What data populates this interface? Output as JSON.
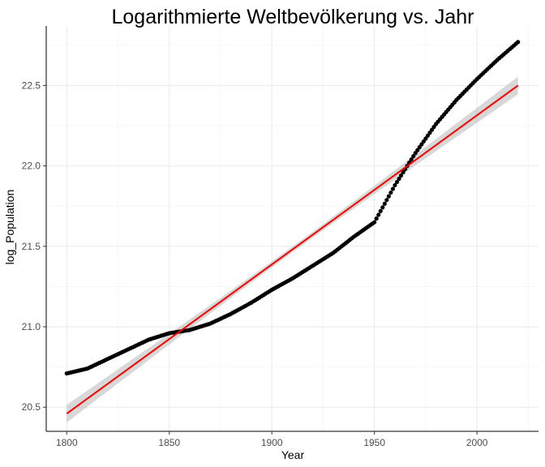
{
  "chart_data": {
    "type": "scatter",
    "title": "Logarithmierte Weltbevölkerung vs. Jahr",
    "xlabel": "Year",
    "ylabel": "log_Population",
    "xlim": [
      1790,
      2030
    ],
    "ylim": [
      20.35,
      22.87
    ],
    "x_ticks": [
      1800,
      1850,
      1900,
      1950,
      2000
    ],
    "y_ticks": [
      20.5,
      21.0,
      21.5,
      22.0,
      22.5
    ],
    "grid": true,
    "points_anchor": [
      [
        1800,
        20.71
      ],
      [
        1810,
        20.74
      ],
      [
        1820,
        20.8
      ],
      [
        1830,
        20.86
      ],
      [
        1840,
        20.92
      ],
      [
        1850,
        20.96
      ],
      [
        1860,
        20.98
      ],
      [
        1870,
        21.02
      ],
      [
        1880,
        21.08
      ],
      [
        1890,
        21.15
      ],
      [
        1900,
        21.23
      ],
      [
        1910,
        21.3
      ],
      [
        1920,
        21.38
      ],
      [
        1930,
        21.46
      ],
      [
        1940,
        21.56
      ],
      [
        1950,
        21.65
      ],
      [
        1960,
        21.88
      ],
      [
        1970,
        22.08
      ],
      [
        1980,
        22.26
      ],
      [
        1990,
        22.41
      ],
      [
        2000,
        22.54
      ],
      [
        2010,
        22.66
      ],
      [
        2020,
        22.77
      ]
    ],
    "series": [
      {
        "kind": "points",
        "color": "#000000"
      },
      {
        "kind": "regression-line",
        "color": "#ff0000",
        "slope": 0.009273,
        "intercept": 20.46,
        "x0": 1800,
        "ci_band": {
          "color": "#bebebe",
          "half_width_at_ends": 0.055,
          "half_width_at_center": 0.018
        }
      }
    ]
  }
}
